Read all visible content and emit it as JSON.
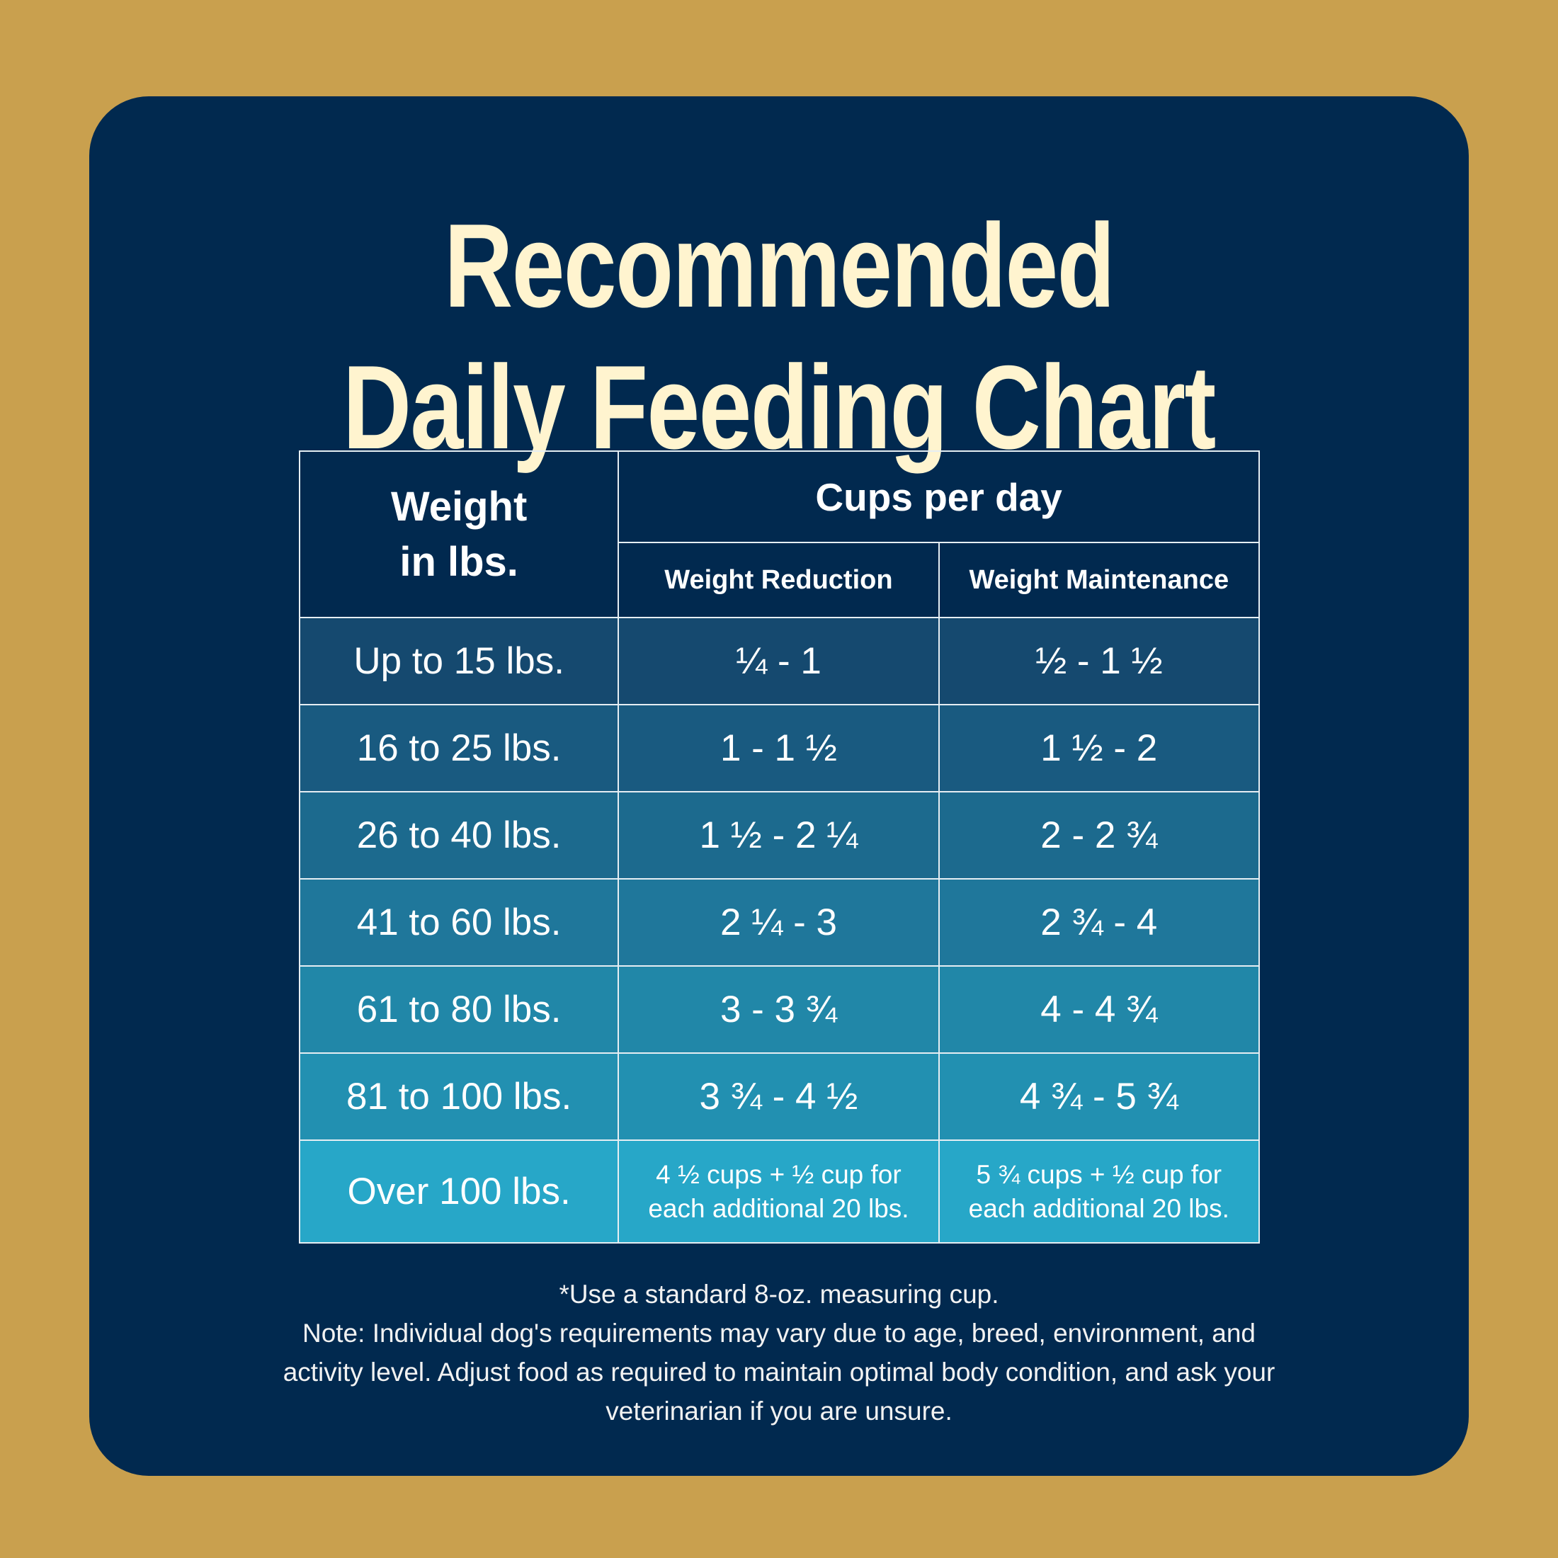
{
  "header": {
    "title": [
      "Recommended",
      "Daily Feeding Chart"
    ]
  },
  "table": {
    "weight_header": [
      "Weight",
      "in lbs."
    ],
    "group_header": "Cups per day",
    "columns": [
      "Weight Reduction",
      "Weight Maintenance"
    ],
    "rows": [
      [
        "Up to 15 lbs.",
        "¼ - 1",
        "½ - 1 ½"
      ],
      [
        "16 to 25 lbs.",
        "1 - 1 ½",
        "1 ½ - 2"
      ],
      [
        "26 to 40 lbs.",
        "1 ½ - 2 ¼",
        "2 - 2 ¾"
      ],
      [
        "41 to 60 lbs.",
        "2 ¼ - 3",
        "2 ¾ - 4"
      ],
      [
        "61 to 80 lbs.",
        "3 - 3  ¾",
        "4 - 4 ¾"
      ],
      [
        "81 to 100 lbs.",
        "3 ¾ - 4 ½",
        "4 ¾ - 5 ¾"
      ],
      [
        "Over 100 lbs.",
        "4 ½ cups + ½ cup for each additional 20 lbs.",
        "5 ¾ cups + ½ cup for each additional 20 lbs."
      ]
    ]
  },
  "notes": [
    "*Use a standard 8-oz. measuring cup.",
    "Note: Individual dog's requirements may vary due to age, breed, environment, and activity level. Adjust food as required to maintain optimal body condition, and ask your veterinarian if you are unsure."
  ]
}
